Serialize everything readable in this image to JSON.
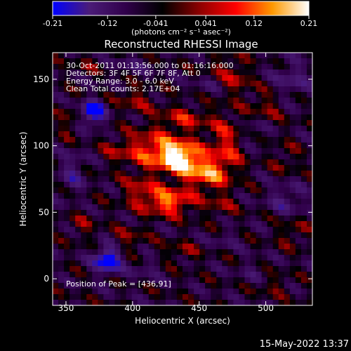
{
  "chart_data": {
    "type": "heatmap",
    "title": "Reconstructed RHESSI Image",
    "xlabel": "Heliocentric X (arcsec)",
    "ylabel": "Heliocentric Y (arcsec)",
    "xlim": [
      340,
      535
    ],
    "ylim": [
      -20,
      170
    ],
    "x_ticks": [
      350,
      400,
      450,
      500
    ],
    "y_ticks": [
      0,
      50,
      100,
      150
    ],
    "colorbar": {
      "range": [
        -0.21,
        0.21
      ],
      "tick_values": [
        -0.21,
        -0.12,
        -0.041,
        0.041,
        0.12,
        0.21
      ],
      "tick_labels": [
        "-0.21",
        "-0.12",
        "-0.041",
        "0.041",
        "0.12",
        "0.21"
      ],
      "unit": "(photons cm⁻² s⁻¹ asec⁻²)",
      "colormap": [
        "#0000ff",
        "#4b1c78",
        "#30004a",
        "#000000",
        "#8b0000",
        "#ff0000",
        "#ff9900",
        "#ffffff"
      ]
    },
    "info_lines": [
      "30-Oct-2011 01:13:56.000 to 01:16:16.000",
      "Detectors: 3F 4F 5F 6F 7F 8F, Att 0",
      "Energy Range: 3.0 - 6.0 keV",
      "Clean    Total counts: 2.17E+04"
    ],
    "peak_label": "Position of Peak = [436,91]",
    "peak": [
      436,
      91
    ]
  },
  "footer": {
    "timestamp": "15-May-2022 13:37"
  }
}
